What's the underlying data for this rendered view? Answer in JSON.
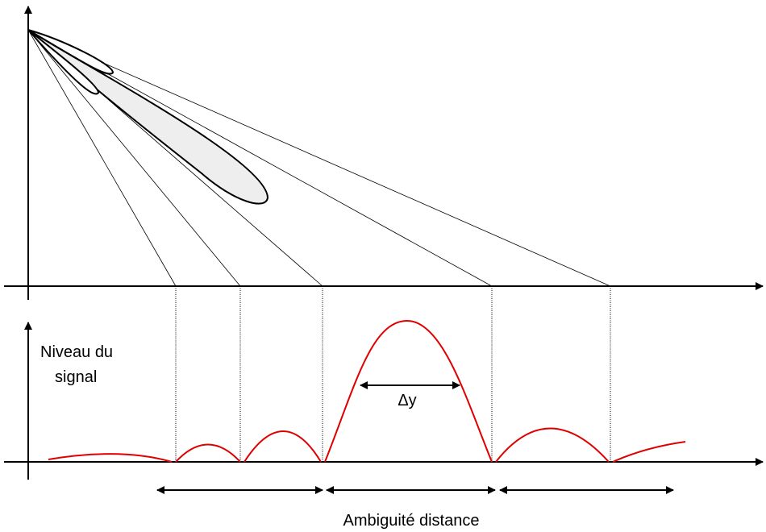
{
  "axis_label": {
    "line1": "Niveau du",
    "line2": "signal"
  },
  "width_label": "Δy",
  "bottom_label": "Ambiguité distance"
}
